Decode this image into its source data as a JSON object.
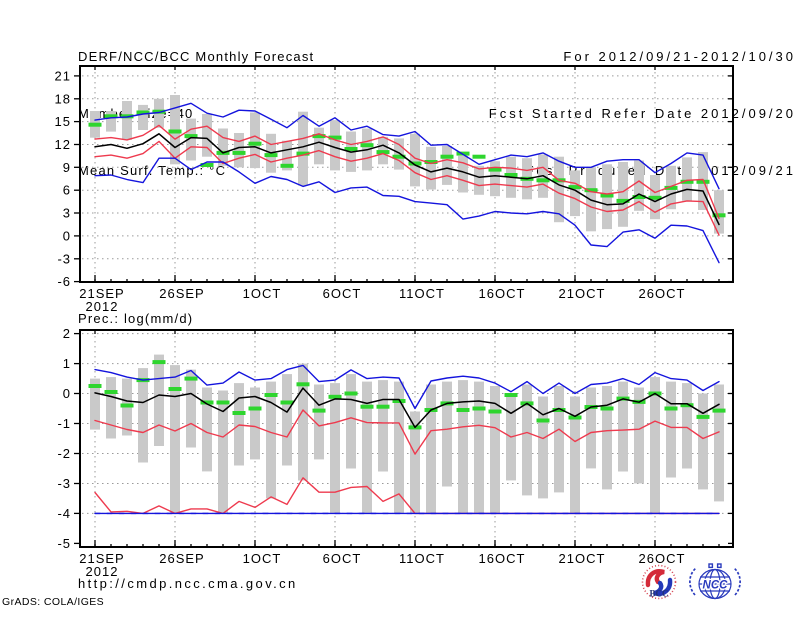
{
  "header": {
    "title": "DERF/NCC/BCC Monthly Forecast",
    "member_size": "Member Size=40",
    "variable": "Mean Surf. Temp.: °C",
    "for_range": "For 2012/09/21-2012/10/30",
    "refer_date": "Fcst Started Refer Date 2012/09/20",
    "produced_date": "Fcst Produced Date 2012/09/21"
  },
  "precip_label": "Prec.: log(mm/d)",
  "footer": {
    "url": "http://cmdp.ncc.cma.gov.cn",
    "grads_credit": "GrADS: COLA/IGES",
    "logos": {
      "bcc": "BCC",
      "ncc": "NCC"
    }
  },
  "colors": {
    "blue": "#1414dd",
    "red": "#ee3a4e",
    "green": "#2ed52e",
    "mean": "#000000",
    "spread_bar": "#c9c9c9",
    "grid": "#9a9a9a"
  },
  "chart_data": [
    {
      "name": "temperature-panel",
      "type": "line",
      "title": "Mean Surf. Temp.: °C",
      "xlabel": "",
      "ylabel": "°C",
      "n_days": 40,
      "grid": "on",
      "x_ticks": [
        {
          "day": 0,
          "label": "21SEP",
          "sub": "2012"
        },
        {
          "day": 5,
          "label": "26SEP"
        },
        {
          "day": 10,
          "label": "1OCT"
        },
        {
          "day": 15,
          "label": "6OCT"
        },
        {
          "day": 20,
          "label": "11OCT"
        },
        {
          "day": 25,
          "label": "16OCT"
        },
        {
          "day": 30,
          "label": "21OCT"
        },
        {
          "day": 35,
          "label": "26OCT"
        }
      ],
      "ylim": [
        -6.05,
        22.3
      ],
      "y_ticks": [
        21,
        18,
        15,
        12,
        9,
        6,
        3,
        0,
        -3,
        -6
      ],
      "y_grid": [
        21,
        18,
        15,
        12,
        9,
        6,
        3,
        0,
        -3
      ],
      "bars": {
        "label": "ensemble-spread-bar",
        "top": [
          16.4,
          16.4,
          17.7,
          17.2,
          18.0,
          18.5,
          15.4,
          16.0,
          14.1,
          13.5,
          16.2,
          13.4,
          12.5,
          16.3,
          14.2,
          15.2,
          13.7,
          14.1,
          13.0,
          12.8,
          13.4,
          11.7,
          11.8,
          10.5,
          9.2,
          9.8,
          10.4,
          10.2,
          10.7,
          10.4,
          8.6,
          9.0,
          9.4,
          9.7,
          9.9,
          8.0,
          9.2,
          10.3,
          11.0,
          6.0
        ],
        "bottom": [
          12.9,
          13.7,
          12.6,
          13.9,
          14.2,
          9.4,
          9.9,
          10.4,
          9.2,
          9.0,
          8.9,
          8.3,
          8.6,
          6.6,
          9.4,
          8.6,
          8.4,
          8.6,
          9.4,
          8.7,
          6.5,
          6.1,
          6.7,
          5.7,
          5.4,
          5.2,
          5.0,
          4.8,
          5.0,
          1.8,
          2.6,
          0.6,
          0.9,
          1.2,
          3.3,
          2.2,
          3.5,
          4.6,
          3.4,
          0.3
        ]
      },
      "series": [
        {
          "name": "observation",
          "color_key": "green",
          "style": "dash-marker",
          "values": [
            14.6,
            15.7,
            15.7,
            16.2,
            16.3,
            13.7,
            13.1,
            9.3,
            10.9,
            10.9,
            12.1,
            10.6,
            9.2,
            10.8,
            13.1,
            12.9,
            11.4,
            11.9,
            11.0,
            10.4,
            9.5,
            9.7,
            10.4,
            10.8,
            10.4,
            8.7,
            8.0,
            7.5,
            7.3,
            7.3,
            6.4,
            6.0,
            5.3,
            4.6,
            5.1,
            5.0,
            6.3,
            7.1,
            7.1,
            2.7
          ]
        },
        {
          "name": "upper-spread",
          "color_key": "red",
          "style": "line",
          "values": [
            12.7,
            12.9,
            12.6,
            13.2,
            14.5,
            12.7,
            14.0,
            14.4,
            12.9,
            12.4,
            13.1,
            12.0,
            12.4,
            12.8,
            13.4,
            12.6,
            12.0,
            12.4,
            13.0,
            12.0,
            10.2,
            9.5,
            10.0,
            9.6,
            8.8,
            9.0,
            8.9,
            8.6,
            9.0,
            7.3,
            6.9,
            5.8,
            5.5,
            5.8,
            7.2,
            5.7,
            6.5,
            7.3,
            7.4,
            2.3
          ]
        },
        {
          "name": "lower-spread",
          "color_key": "red",
          "style": "line",
          "values": [
            10.4,
            10.6,
            10.2,
            10.8,
            12.4,
            10.2,
            11.7,
            11.6,
            9.5,
            10.2,
            10.7,
            9.7,
            10.2,
            10.6,
            11.2,
            10.4,
            9.8,
            10.2,
            10.8,
            9.9,
            8.3,
            7.4,
            7.9,
            7.3,
            6.6,
            6.8,
            6.6,
            6.4,
            6.8,
            5.6,
            4.9,
            3.8,
            3.2,
            3.4,
            4.5,
            3.1,
            4.2,
            4.6,
            4.5,
            0.1
          ]
        },
        {
          "name": "ensemble-max",
          "color_key": "blue",
          "style": "line",
          "values": [
            15.2,
            15.5,
            15.6,
            16.0,
            16.2,
            16.8,
            17.4,
            16.1,
            15.6,
            16.5,
            16.4,
            15.3,
            14.2,
            15.8,
            14.4,
            15.5,
            13.9,
            14.4,
            13.3,
            13.1,
            13.7,
            11.9,
            12.0,
            10.7,
            9.4,
            10.0,
            10.6,
            10.4,
            10.9,
            9.8,
            9.0,
            9.0,
            9.8,
            10.0,
            10.0,
            8.3,
            9.5,
            10.9,
            10.6,
            6.2
          ]
        },
        {
          "name": "ensemble-min",
          "color_key": "blue",
          "style": "line",
          "values": [
            7.9,
            8.0,
            7.4,
            7.0,
            10.2,
            10.2,
            8.7,
            9.7,
            9.7,
            8.4,
            6.9,
            7.8,
            7.4,
            6.5,
            7.1,
            5.7,
            6.3,
            6.4,
            5.3,
            5.2,
            4.5,
            4.3,
            4.1,
            2.2,
            2.6,
            3.2,
            3.0,
            2.9,
            3.2,
            2.9,
            1.4,
            -1.2,
            -1.4,
            0.5,
            0.8,
            -0.3,
            1.4,
            1.3,
            0.7,
            -3.5
          ]
        },
        {
          "name": "ensemble-mean",
          "color_key": "mean",
          "style": "line",
          "values": [
            11.7,
            12.0,
            11.5,
            12.1,
            13.4,
            11.6,
            12.9,
            12.8,
            10.9,
            11.6,
            11.7,
            10.9,
            11.3,
            11.7,
            12.3,
            11.6,
            11.0,
            11.3,
            11.9,
            10.9,
            9.3,
            8.4,
            8.9,
            8.4,
            7.7,
            7.9,
            7.7,
            7.5,
            7.9,
            6.7,
            6.0,
            4.7,
            4.1,
            4.2,
            5.5,
            4.5,
            5.5,
            6.1,
            5.9,
            1.5
          ]
        }
      ]
    },
    {
      "name": "precipitation-panel",
      "type": "line",
      "title": "Prec.: log(mm/d)",
      "xlabel": "",
      "ylabel": "log(mm/d)",
      "n_days": 40,
      "grid": "on",
      "x_ticks": [
        {
          "day": 0,
          "label": "21SEP",
          "sub": "2012"
        },
        {
          "day": 5,
          "label": "26SEP"
        },
        {
          "day": 10,
          "label": "1OCT"
        },
        {
          "day": 15,
          "label": "6OCT"
        },
        {
          "day": 20,
          "label": "11OCT"
        },
        {
          "day": 25,
          "label": "16OCT"
        },
        {
          "day": 30,
          "label": "21OCT"
        },
        {
          "day": 35,
          "label": "26OCT"
        }
      ],
      "ylim": [
        -5.12,
        2.12
      ],
      "y_ticks": [
        2,
        1,
        0,
        -1,
        -2,
        -3,
        -4,
        -5
      ],
      "y_grid": [
        2,
        1,
        0,
        -1,
        -2,
        -3,
        -4
      ],
      "bars": {
        "label": "ensemble-spread-bar",
        "top": [
          0.5,
          0.55,
          0.5,
          0.85,
          1.3,
          0.95,
          0.8,
          0.2,
          0.1,
          0.35,
          0.2,
          0.4,
          0.65,
          1.0,
          0.3,
          0.35,
          0.65,
          0.4,
          0.45,
          0.4,
          -0.6,
          0.3,
          0.4,
          0.45,
          0.4,
          0.25,
          -0.05,
          0.3,
          -0.1,
          0.25,
          -0.1,
          0.2,
          0.25,
          0.4,
          0.2,
          0.55,
          0.4,
          0.35,
          0.0,
          0.3
        ],
        "bottom": [
          -1.2,
          -1.5,
          -1.4,
          -2.3,
          -1.75,
          -4.0,
          -1.8,
          -2.6,
          -4.0,
          -2.4,
          -2.2,
          -3.5,
          -2.4,
          -2.9,
          -2.2,
          -4.0,
          -2.5,
          -4.0,
          -2.6,
          -4.0,
          -4.0,
          -4.0,
          -3.1,
          -4.0,
          -4.0,
          -4.0,
          -2.9,
          -3.4,
          -3.5,
          -3.3,
          -4.0,
          -2.5,
          -3.2,
          -2.6,
          -3.0,
          -4.0,
          -2.8,
          -2.5,
          -3.2,
          -3.6
        ]
      },
      "series": [
        {
          "name": "observation",
          "color_key": "green",
          "style": "dash-marker",
          "values": [
            0.25,
            0.05,
            -0.4,
            0.45,
            1.05,
            0.15,
            0.5,
            -0.3,
            -0.3,
            -0.65,
            -0.5,
            -0.05,
            -0.3,
            0.31,
            -0.57,
            -0.11,
            0.0,
            -0.44,
            -0.44,
            -0.25,
            -1.13,
            -0.55,
            -0.33,
            -0.55,
            -0.5,
            -0.6,
            -0.05,
            -0.33,
            -0.9,
            -0.55,
            -0.8,
            -0.45,
            -0.5,
            -0.17,
            -0.28,
            0.0,
            -0.5,
            -0.39,
            -0.78,
            -0.57
          ]
        },
        {
          "name": "upper-spread",
          "color_key": "red",
          "style": "line",
          "values": [
            -0.9,
            -1.05,
            -1.2,
            -1.3,
            -1.05,
            -1.25,
            -1.0,
            -1.3,
            -1.45,
            -1.05,
            -1.1,
            -1.3,
            -1.45,
            -0.55,
            -1.08,
            -0.97,
            -0.81,
            -0.97,
            -0.98,
            -0.98,
            -2.02,
            -1.24,
            -1.19,
            -1.11,
            -1.06,
            -1.14,
            -1.45,
            -1.3,
            -1.5,
            -1.19,
            -1.6,
            -1.3,
            -1.24,
            -1.22,
            -1.19,
            -0.92,
            -1.13,
            -1.13,
            -1.5,
            -1.28
          ]
        },
        {
          "name": "lower-spread",
          "color_key": "red",
          "style": "line",
          "values": [
            -3.3,
            -3.95,
            -3.93,
            -4.0,
            -3.75,
            -4.0,
            -3.85,
            -3.85,
            -4.0,
            -3.6,
            -3.8,
            -3.45,
            -3.7,
            -2.81,
            -3.29,
            -3.29,
            -3.13,
            -3.1,
            -3.6,
            -3.35,
            -4.0,
            -4.0,
            -4.0,
            -4.0,
            -4.0,
            -4.0,
            -4.0,
            -4.0,
            -4.0,
            -4.0,
            -4.0,
            -4.0,
            -4.0,
            -4.0,
            -4.0,
            -4.0,
            -4.0,
            -4.0,
            -4.0,
            -4.0
          ]
        },
        {
          "name": "ensemble-max",
          "color_key": "blue",
          "style": "line",
          "values": [
            0.8,
            0.7,
            0.55,
            0.45,
            0.5,
            0.55,
            0.77,
            0.28,
            0.35,
            0.72,
            0.45,
            0.5,
            0.8,
            0.94,
            0.4,
            0.45,
            0.79,
            0.5,
            0.55,
            0.52,
            -0.5,
            0.42,
            0.52,
            0.58,
            0.52,
            0.35,
            0.06,
            0.4,
            0.0,
            0.35,
            0.0,
            0.3,
            0.35,
            0.5,
            0.3,
            0.7,
            0.5,
            0.45,
            0.1,
            0.4
          ]
        },
        {
          "name": "ensemble-min",
          "color_key": "blue",
          "style": "line",
          "dash_overlay": true,
          "values": [
            -4.0,
            -4.0,
            -4.0,
            -4.0,
            -4.0,
            -4.0,
            -4.0,
            -4.0,
            -4.0,
            -4.0,
            -4.0,
            -4.0,
            -4.0,
            -4.0,
            -4.0,
            -4.0,
            -4.0,
            -4.0,
            -4.0,
            -4.0,
            -4.0,
            -4.0,
            -4.0,
            -4.0,
            -4.0,
            -4.0,
            -4.0,
            -4.0,
            -4.0,
            -4.0,
            -4.0,
            -4.0,
            -4.0,
            -4.0,
            -4.0,
            -4.0,
            -4.0,
            -4.0,
            -4.0,
            -4.0
          ]
        },
        {
          "name": "ensemble-mean",
          "color_key": "mean",
          "style": "line",
          "values": [
            0.02,
            -0.1,
            -0.25,
            -0.3,
            -0.05,
            -0.1,
            0.0,
            -0.35,
            -0.6,
            -0.15,
            -0.1,
            -0.3,
            -0.62,
            0.18,
            -0.39,
            -0.18,
            -0.2,
            -0.33,
            -0.2,
            -0.2,
            -1.13,
            -0.55,
            -0.33,
            -0.28,
            -0.25,
            -0.33,
            -0.66,
            -0.33,
            -0.71,
            -0.5,
            -0.76,
            -0.45,
            -0.39,
            -0.18,
            -0.29,
            0.0,
            -0.34,
            -0.34,
            -0.66,
            -0.36
          ]
        }
      ]
    }
  ]
}
